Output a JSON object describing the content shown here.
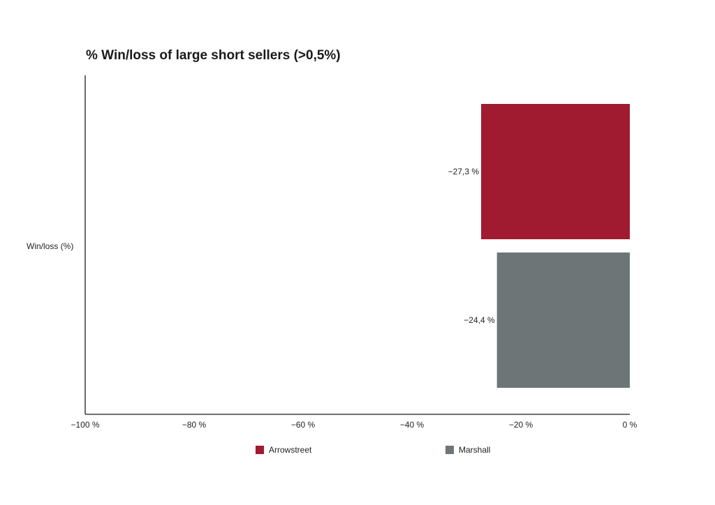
{
  "chart_data": {
    "type": "bar",
    "orientation": "horizontal",
    "title": "% Win/loss of large short sellers (>0,5%)",
    "ylabel": "Win/loss (%)",
    "xlabel": "",
    "xlim": [
      -100,
      0
    ],
    "x_ticks": [
      -100,
      -80,
      -60,
      -40,
      -20,
      0
    ],
    "x_tick_labels": [
      "−100 %",
      "−80 %",
      "−60 %",
      "−40 %",
      "−20 %",
      "0 %"
    ],
    "grid": false,
    "legend_position": "bottom",
    "series": [
      {
        "name": "Arrowstreet",
        "value": -27.3,
        "label": "−27,3 %",
        "color": "#a01b2f"
      },
      {
        "name": "Marshall",
        "value": -24.4,
        "label": "−24,4 %",
        "color": "#6e7577"
      }
    ]
  }
}
